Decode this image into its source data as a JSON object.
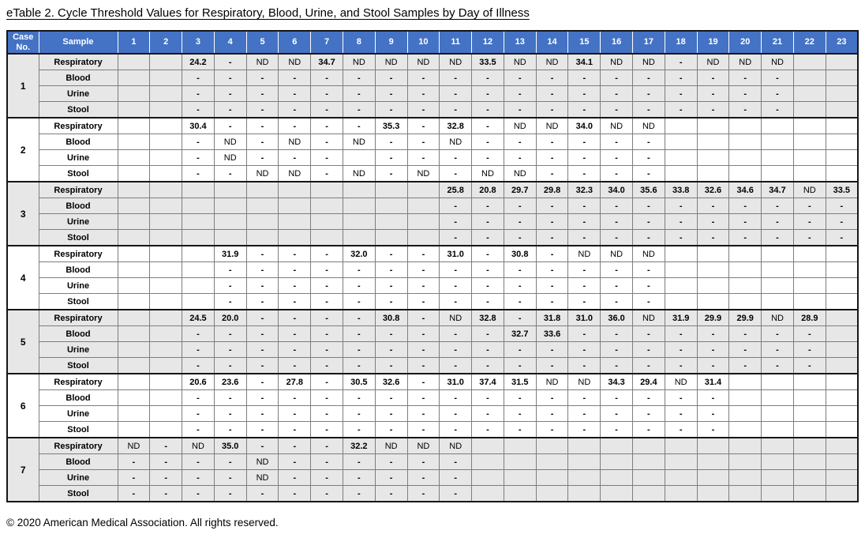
{
  "title": "eTable 2. Cycle Threshold Values for Respiratory, Blood, Urine, and Stool Samples by Day of Illness",
  "footer": "© 2020 American Medical Association. All rights reserved.",
  "colors": {
    "header_bg": "#4472C4",
    "header_text": "#FFFFFF",
    "shaded_row_bg": "#E8E7E7",
    "border_dark": "#161616",
    "border_light": "#7D7D7D"
  },
  "table": {
    "header": {
      "case_no": "Case No.",
      "sample": "Sample",
      "days": [
        "1",
        "2",
        "3",
        "4",
        "5",
        "6",
        "7",
        "8",
        "9",
        "10",
        "11",
        "12",
        "13",
        "14",
        "15",
        "16",
        "17",
        "18",
        "19",
        "20",
        "21",
        "22",
        "23"
      ]
    },
    "sample_types": [
      "Respiratory",
      "Blood",
      "Urine",
      "Stool"
    ],
    "cases": [
      {
        "case_no": "1",
        "shaded": true,
        "rows": [
          [
            "",
            "",
            "24.2",
            "-",
            "ND",
            "ND",
            "34.7",
            "ND",
            "ND",
            "ND",
            "ND",
            "33.5",
            "ND",
            "ND",
            "34.1",
            "ND",
            "ND",
            "-",
            "ND",
            "ND",
            "ND",
            "",
            ""
          ],
          [
            "",
            "",
            "-",
            "-",
            "-",
            "-",
            "-",
            "-",
            "-",
            "-",
            "-",
            "-",
            "-",
            "-",
            "-",
            "-",
            "-",
            "-",
            "-",
            "-",
            "-",
            "",
            ""
          ],
          [
            "",
            "",
            "-",
            "-",
            "-",
            "-",
            "-",
            "-",
            "-",
            "-",
            "-",
            "-",
            "-",
            "-",
            "-",
            "-",
            "-",
            "-",
            "-",
            "-",
            "-",
            "",
            ""
          ],
          [
            "",
            "",
            "-",
            "-",
            "-",
            "-",
            "-",
            "-",
            "-",
            "-",
            "-",
            "-",
            "-",
            "-",
            "-",
            "-",
            "-",
            "-",
            "-",
            "-",
            "-",
            "",
            ""
          ]
        ]
      },
      {
        "case_no": "2",
        "shaded": false,
        "rows": [
          [
            "",
            "",
            "30.4",
            "-",
            "-",
            "-",
            "-",
            "-",
            "35.3",
            "-",
            "32.8",
            "-",
            "ND",
            "ND",
            "34.0",
            "ND",
            "ND",
            "",
            "",
            "",
            "",
            "",
            ""
          ],
          [
            "",
            "",
            "-",
            "ND",
            "-",
            "ND",
            "-",
            "ND",
            "-",
            "-",
            "ND",
            "-",
            "-",
            "-",
            "-",
            "-",
            "-",
            "",
            "",
            "",
            "",
            "",
            ""
          ],
          [
            "",
            "",
            "-",
            "ND",
            "-",
            "-",
            "-",
            "",
            "-",
            "-",
            "-",
            "-",
            "-",
            "-",
            "-",
            "-",
            "-",
            "",
            "",
            "",
            "",
            "",
            ""
          ],
          [
            "",
            "",
            "-",
            "-",
            "ND",
            "ND",
            "-",
            "ND",
            "-",
            "ND",
            "-",
            "ND",
            "ND",
            "-",
            "-",
            "-",
            "-",
            "",
            "",
            "",
            "",
            "",
            ""
          ]
        ]
      },
      {
        "case_no": "3",
        "shaded": true,
        "rows": [
          [
            "",
            "",
            "",
            "",
            "",
            "",
            "",
            "",
            "",
            "",
            "25.8",
            "20.8",
            "29.7",
            "29.8",
            "32.3",
            "34.0",
            "35.6",
            "33.8",
            "32.6",
            "34.6",
            "34.7",
            "ND",
            "33.5"
          ],
          [
            "",
            "",
            "",
            "",
            "",
            "",
            "",
            "",
            "",
            "",
            "-",
            "-",
            "-",
            "-",
            "-",
            "-",
            "-",
            "-",
            "-",
            "-",
            "-",
            "-",
            "-"
          ],
          [
            "",
            "",
            "",
            "",
            "",
            "",
            "",
            "",
            "",
            "",
            "-",
            "-",
            "-",
            "-",
            "-",
            "-",
            "-",
            "-",
            "-",
            "-",
            "-",
            "-",
            "-"
          ],
          [
            "",
            "",
            "",
            "",
            "",
            "",
            "",
            "",
            "",
            "",
            "-",
            "-",
            "-",
            "-",
            "-",
            "-",
            "-",
            "-",
            "-",
            "-",
            "-",
            "-",
            "-"
          ]
        ]
      },
      {
        "case_no": "4",
        "shaded": false,
        "rows": [
          [
            "",
            "",
            "",
            "31.9",
            "-",
            "-",
            "-",
            "32.0",
            "-",
            "-",
            "31.0",
            "-",
            "30.8",
            "-",
            "ND",
            "ND",
            "ND",
            "",
            "",
            "",
            "",
            "",
            ""
          ],
          [
            "",
            "",
            "",
            "-",
            "-",
            "-",
            "-",
            "-",
            "-",
            "-",
            "-",
            "-",
            "-",
            "-",
            "-",
            "-",
            "-",
            "",
            "",
            "",
            "",
            "",
            ""
          ],
          [
            "",
            "",
            "",
            "-",
            "-",
            "-",
            "-",
            "-",
            "-",
            "-",
            "-",
            "-",
            "-",
            "-",
            "-",
            "-",
            "-",
            "",
            "",
            "",
            "",
            "",
            ""
          ],
          [
            "",
            "",
            "",
            "-",
            "-",
            "-",
            "-",
            "-",
            "-",
            "-",
            "-",
            "-",
            "-",
            "-",
            "-",
            "-",
            "-",
            "",
            "",
            "",
            "",
            "",
            ""
          ]
        ]
      },
      {
        "case_no": "5",
        "shaded": true,
        "rows": [
          [
            "",
            "",
            "24.5",
            "20.0",
            "-",
            "-",
            "-",
            "-",
            "30.8",
            "-",
            "ND",
            "32.8",
            "-",
            "31.8",
            "31.0",
            "36.0",
            "ND",
            "31.9",
            "29.9",
            "29.9",
            "ND",
            "28.9",
            ""
          ],
          [
            "",
            "",
            "-",
            "-",
            "-",
            "-",
            "-",
            "-",
            "-",
            "-",
            "-",
            "-",
            "32.7",
            "33.6",
            "-",
            "-",
            "-",
            "-",
            "-",
            "-",
            "-",
            "-",
            ""
          ],
          [
            "",
            "",
            "-",
            "-",
            "-",
            "-",
            "-",
            "-",
            "-",
            "-",
            "-",
            "-",
            "-",
            "-",
            "-",
            "-",
            "-",
            "-",
            "-",
            "-",
            "-",
            "-",
            ""
          ],
          [
            "",
            "",
            "-",
            "-",
            "-",
            "-",
            "-",
            "-",
            "-",
            "-",
            "-",
            "-",
            "-",
            "-",
            "-",
            "-",
            "-",
            "-",
            "-",
            "-",
            "-",
            "-",
            ""
          ]
        ]
      },
      {
        "case_no": "6",
        "shaded": false,
        "rows": [
          [
            "",
            "",
            "20.6",
            "23.6",
            "-",
            "27.8",
            "-",
            "30.5",
            "32.6",
            "-",
            "31.0",
            "37.4",
            "31.5",
            "ND",
            "ND",
            "34.3",
            "29.4",
            "ND",
            "31.4",
            "",
            "",
            "",
            ""
          ],
          [
            "",
            "",
            "-",
            "-",
            "-",
            "-",
            "-",
            "-",
            "-",
            "-",
            "-",
            "-",
            "-",
            "-",
            "-",
            "-",
            "-",
            "-",
            "-",
            "",
            "",
            "",
            ""
          ],
          [
            "",
            "",
            "-",
            "-",
            "-",
            "-",
            "-",
            "-",
            "-",
            "-",
            "-",
            "-",
            "-",
            "-",
            "-",
            "-",
            "-",
            "-",
            "-",
            "",
            "",
            "",
            ""
          ],
          [
            "",
            "",
            "-",
            "-",
            "-",
            "-",
            "-",
            "-",
            "-",
            "-",
            "-",
            "-",
            "-",
            "-",
            "-",
            "-",
            "-",
            "-",
            "-",
            "",
            "",
            "",
            ""
          ]
        ]
      },
      {
        "case_no": "7",
        "shaded": true,
        "rows": [
          [
            "ND",
            "-",
            "ND",
            "35.0",
            "-",
            "-",
            "-",
            "32.2",
            "ND",
            "ND",
            "ND",
            "",
            "",
            "",
            "",
            "",
            "",
            "",
            "",
            "",
            "",
            "",
            ""
          ],
          [
            "-",
            "-",
            "-",
            "-",
            "ND",
            "-",
            "-",
            "-",
            "-",
            "-",
            "-",
            "",
            "",
            "",
            "",
            "",
            "",
            "",
            "",
            "",
            "",
            "",
            ""
          ],
          [
            "-",
            "-",
            "-",
            "-",
            "ND",
            "-",
            "-",
            "-",
            "-",
            "-",
            "-",
            "",
            "",
            "",
            "",
            "",
            "",
            "",
            "",
            "",
            "",
            "",
            ""
          ],
          [
            "-",
            "-",
            "-",
            "-",
            "-",
            "-",
            "-",
            "-",
            "-",
            "-",
            "-",
            "",
            "",
            "",
            "",
            "",
            "",
            "",
            "",
            "",
            "",
            "",
            ""
          ]
        ]
      }
    ]
  }
}
